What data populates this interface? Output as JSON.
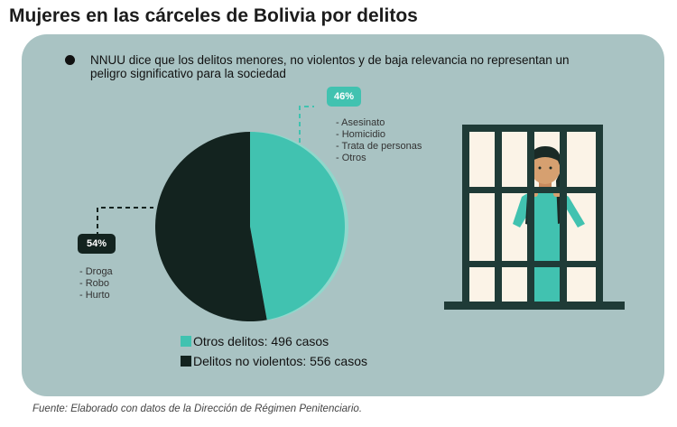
{
  "header": {
    "title": "Mujeres en las cárceles de Bolivia por delitos"
  },
  "note": "NNUU dice que los delitos menores, no violentos y de baja relevancia no representan un peligro significativo para la sociedad",
  "badges": {
    "otros": "46%",
    "no_violentos": "54%"
  },
  "lists": {
    "otros": [
      "- Asesinato",
      "- Homicidio",
      "- Trata de personas",
      "- Otros"
    ],
    "no_violentos": [
      "- Droga",
      "- Robo",
      "- Hurto"
    ]
  },
  "legend": [
    {
      "label": "Otros delitos: 496 casos",
      "color": "#41c2b0"
    },
    {
      "label": "Delitos no violentos: 556 casos",
      "color": "#13231f"
    }
  ],
  "source": "Fuente: Elaborado con datos de la Dirección de Régimen Penitenciario.",
  "colors": {
    "panel": "#a9c3c3",
    "teal": "#41c2b0",
    "dark": "#13231f"
  },
  "chart_data": {
    "type": "pie",
    "slices": [
      {
        "label": "Otros delitos",
        "value": 496,
        "percent": 46,
        "color": "#41c2b0"
      },
      {
        "label": "Delitos no violentos",
        "value": 556,
        "percent": 54,
        "color": "#13231f"
      }
    ]
  }
}
